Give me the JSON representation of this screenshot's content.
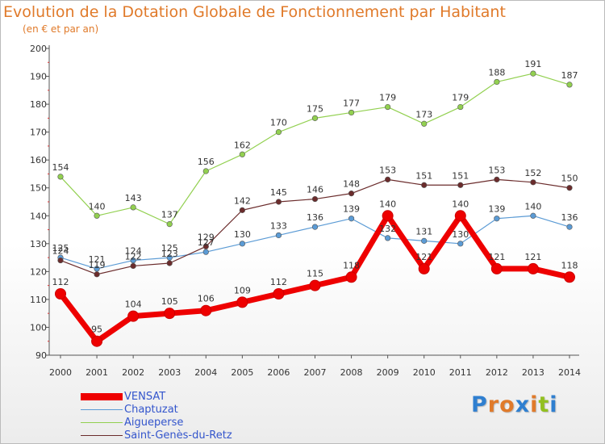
{
  "header": {
    "title": "Evolution de la Dotation Globale de Fonctionnement par Habitant",
    "subtitle": "(en € et par an)"
  },
  "chart_data": {
    "type": "line",
    "title": "Evolution de la Dotation Globale de Fonctionnement par Habitant",
    "subtitle": "(en € et par an)",
    "xlabel": "",
    "ylabel": "",
    "ylim": [
      90,
      200
    ],
    "yticks": [
      90,
      100,
      110,
      120,
      130,
      140,
      150,
      160,
      170,
      180,
      190,
      200
    ],
    "grid": false,
    "legend_position": "bottom-left",
    "x": [
      "2000",
      "2001",
      "2002",
      "2003",
      "2004",
      "2005",
      "2006",
      "2007",
      "2008",
      "2009",
      "2010",
      "2011",
      "2012",
      "2013",
      "2014"
    ],
    "series": [
      {
        "name": "VENSAT",
        "color": "#ee0000",
        "emphasis": true,
        "values": [
          112,
          95,
          104,
          105,
          106,
          109,
          112,
          115,
          118,
          140,
          121,
          140,
          121,
          121,
          118
        ]
      },
      {
        "name": "Chaptuzat",
        "color": "#5b9bd5",
        "emphasis": false,
        "values": [
          125,
          121,
          124,
          125,
          127,
          130,
          133,
          136,
          139,
          132,
          131,
          130,
          139,
          140,
          136
        ]
      },
      {
        "name": "Aigueperse",
        "color": "#92d050",
        "emphasis": false,
        "values": [
          154,
          140,
          143,
          137,
          156,
          162,
          170,
          175,
          177,
          179,
          173,
          179,
          188,
          191,
          187
        ]
      },
      {
        "name": "Saint-Genès-du-Retz",
        "color": "#6b2c2c",
        "emphasis": false,
        "values": [
          124,
          119,
          122,
          123,
          129,
          142,
          145,
          146,
          148,
          153,
          151,
          151,
          153,
          152,
          150
        ]
      }
    ]
  },
  "logo": {
    "letters": [
      "P",
      "r",
      "o",
      "x",
      "i",
      "t",
      "i"
    ],
    "colors": [
      "#2f7fd0",
      "#e07a2a",
      "#e07a2a",
      "#2f7fd0",
      "#e07a2a",
      "#92c020",
      "#2f7fd0"
    ]
  }
}
